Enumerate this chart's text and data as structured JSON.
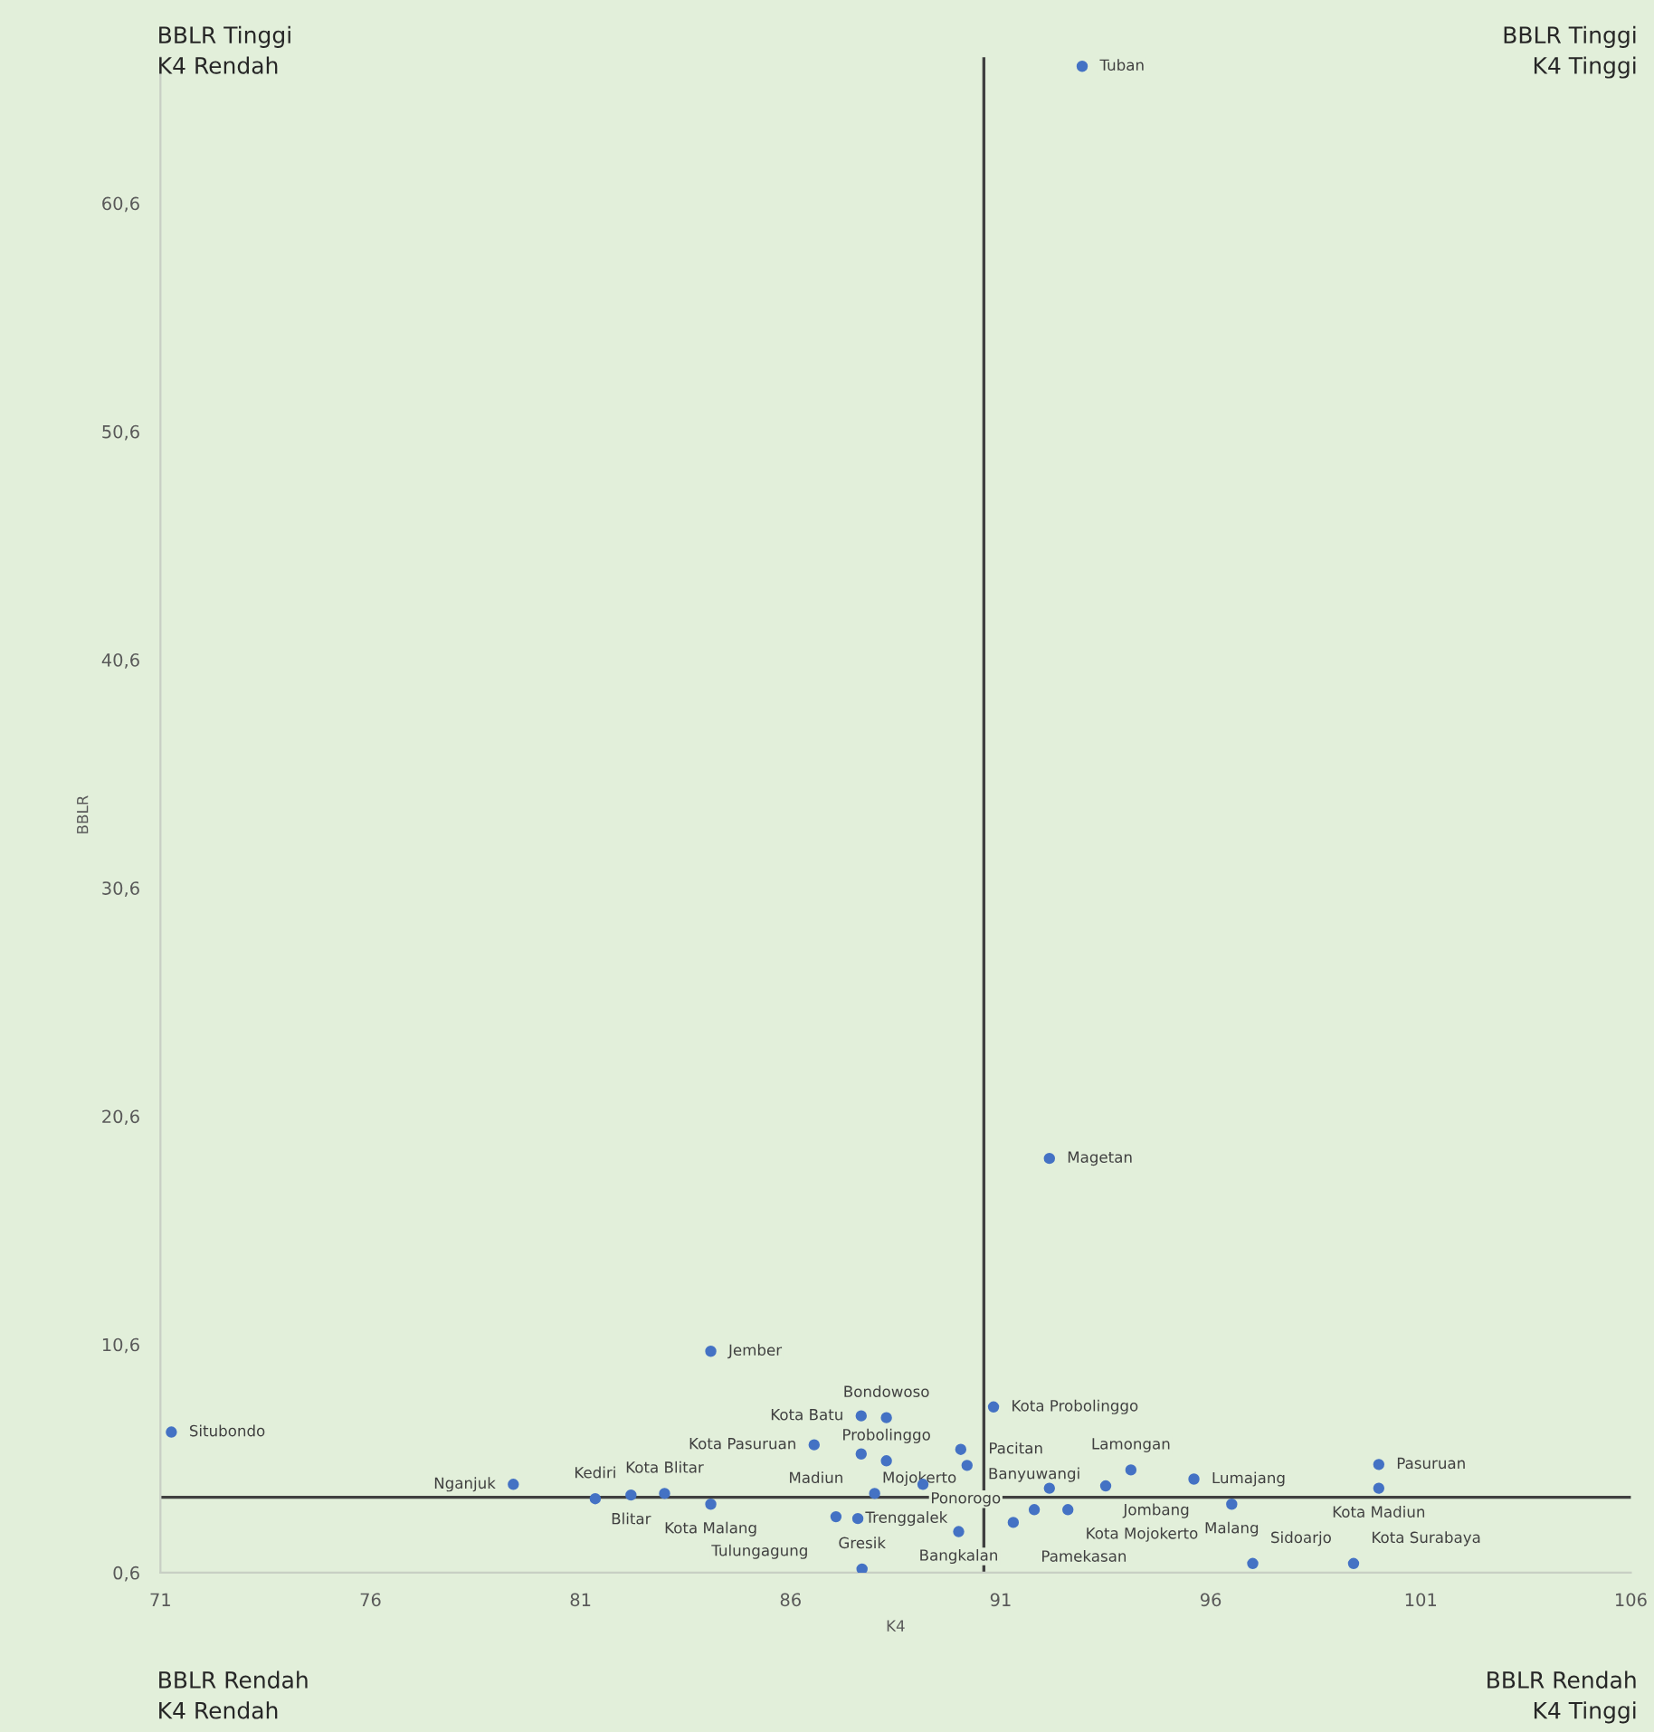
{
  "chart_data": {
    "type": "scatter",
    "xlabel": "K4",
    "ylabel": "BBLR",
    "annotations": [
      "BBLR Tinggi\nK4 Rendah",
      "BBLR Tinggi\nK4 Tinggi",
      "BBLR Rendah\nK4 Rendah",
      "BBLR Rendah\nK4 Tinggi",
      {
        "text": "Tuban",
        "x": 92.94,
        "y": 66.6
      },
      {
        "text": "Magetan",
        "x": 92.16,
        "y": 18.75
      },
      {
        "text": "Jember",
        "x": 84.1,
        "y": 10.3
      },
      {
        "text": "Situbondo",
        "x": 71.26,
        "y": 6.76
      },
      {
        "text": "Kota Batu",
        "x": 87.68,
        "y": 7.47
      },
      {
        "text": "Bondowoso",
        "x": 88.28,
        "y": 7.39
      },
      {
        "text": "Kota Probolinggo",
        "x": 90.83,
        "y": 7.86
      },
      {
        "text": "Kota Pasuruan",
        "x": 86.56,
        "y": 6.2
      },
      {
        "text": "Madiun",
        "x": 87.68,
        "y": 5.8
      },
      {
        "text": "Probolinggo",
        "x": 88.28,
        "y": 5.5
      },
      {
        "text": "Pacitan",
        "x": 90.05,
        "y": 6.0
      },
      {
        "text": "Lamongan",
        "x": 94.1,
        "y": 5.1
      },
      {
        "text": "Jombang",
        "x": 93.5,
        "y": 4.4
      },
      {
        "text": "Lumajang",
        "x": 95.6,
        "y": 4.7
      },
      {
        "text": "Malang",
        "x": 96.5,
        "y": 3.6
      },
      {
        "text": "Kota Mojokerto",
        "x": 92.6,
        "y": 3.36
      },
      {
        "text": "Pasuruan",
        "x": 100.0,
        "y": 5.34
      },
      {
        "text": "Kota Madiun",
        "x": 100.0,
        "y": 4.3
      },
      {
        "text": "Sidoarjo",
        "x": 97.0,
        "y": 1.0
      },
      {
        "text": "Kota Surabaya",
        "x": 99.4,
        "y": 1.0
      },
      {
        "text": "Nganjuk",
        "x": 79.4,
        "y": 4.47
      },
      {
        "text": "Kediri",
        "x": 81.35,
        "y": 3.84
      },
      {
        "text": "Blitar",
        "x": 82.2,
        "y": 4.0
      },
      {
        "text": "Kota Blitar",
        "x": 83.0,
        "y": 4.07
      },
      {
        "text": "Kota Malang",
        "x": 84.1,
        "y": 3.6
      },
      {
        "text": "Gresik",
        "x": 87.7,
        "y": 0.76
      },
      {
        "text": "Tulungagung",
        "x": 87.08,
        "y": 3.05
      },
      {
        "text": "Trenggalek",
        "x": 87.6,
        "y": 2.97
      },
      {
        "text": "Mojokerto",
        "x": 88.0,
        "y": 4.07
      },
      {
        "text": "Ponorogo",
        "x": 89.15,
        "y": 4.47
      },
      {
        "text": "Bangkalan",
        "x": 90.0,
        "y": 2.4
      },
      {
        "text": "Pamekasan",
        "x": 91.3,
        "y": 2.8
      },
      {
        "text": "Banyuwangi",
        "x": 91.8,
        "y": 3.36
      }
    ],
    "xlim": [
      71,
      106
    ],
    "xticks": [
      71,
      76,
      81,
      86,
      91,
      96,
      101,
      106
    ],
    "ylim": [
      0.6,
      67
    ],
    "yticks": [
      {
        "value": 0.6,
        "label": "0,6"
      },
      {
        "value": 10.6,
        "label": "10,6"
      },
      {
        "value": 20.6,
        "label": "20,6"
      },
      {
        "value": 30.6,
        "label": "30,6"
      },
      {
        "value": 40.6,
        "label": "40,6"
      },
      {
        "value": 50.6,
        "label": "50,6"
      },
      {
        "value": 60.6,
        "label": "60,6"
      }
    ],
    "grid": false,
    "marker": "circle",
    "ref_lines": [
      {
        "axis": "x",
        "value": 90.6,
        "color": "#404040"
      },
      {
        "axis": "y",
        "value": 3.9,
        "color": "#404040"
      }
    ],
    "series": [
      {
        "color": "#4472c4",
        "x": [
          92.94,
          92.16,
          84.1,
          71.26,
          87.68,
          88.28,
          90.83,
          86.56,
          87.68,
          88.28,
          90.05,
          90.2,
          94.1,
          93.5,
          95.6,
          96.5,
          92.6,
          100.0,
          100.0,
          97.0,
          99.4,
          79.4,
          81.35,
          82.2,
          83.0,
          84.1,
          87.7,
          87.08,
          87.6,
          88.0,
          89.15,
          90.0,
          91.3,
          91.8,
          92.16
        ],
        "values": [
          66.6,
          18.75,
          10.3,
          6.76,
          7.47,
          7.39,
          7.86,
          6.2,
          5.8,
          5.5,
          6.0,
          5.3,
          5.1,
          4.4,
          4.7,
          3.6,
          3.36,
          5.34,
          4.3,
          1.0,
          1.0,
          4.47,
          3.84,
          4.0,
          4.07,
          3.6,
          0.76,
          3.05,
          2.97,
          4.07,
          4.47,
          2.4,
          2.8,
          3.36,
          4.3
        ]
      }
    ]
  }
}
